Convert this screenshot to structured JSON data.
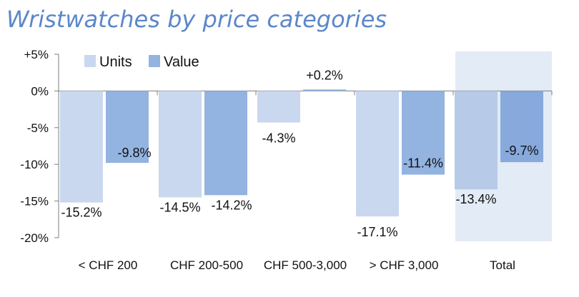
{
  "chart_data": {
    "type": "bar",
    "title": "Wristwatches by price categories",
    "categories": [
      "< CHF 200",
      "CHF 200-500",
      "CHF 500-3,000",
      "> CHF 3,000",
      "Total"
    ],
    "series": [
      {
        "name": "Units",
        "values": [
          -15.2,
          -14.5,
          -4.3,
          -17.1,
          -13.4
        ],
        "labels": [
          "-15.2%",
          "-14.5%",
          "-4.3%",
          "-17.1%",
          "-13.4%"
        ]
      },
      {
        "name": "Value",
        "values": [
          -9.8,
          -14.2,
          0.2,
          -11.4,
          -9.7
        ],
        "labels": [
          "-9.8%",
          "-14.2%",
          "+0.2%",
          "-11.4%",
          "-9.7%"
        ]
      }
    ],
    "yticks": [
      5,
      0,
      -5,
      -10,
      -15,
      -20
    ],
    "ytick_labels": [
      "+5%",
      "0%",
      "-5%",
      "-10%",
      "-15%",
      "-20%"
    ],
    "ylim": [
      -20,
      5
    ],
    "xlabel": "",
    "ylabel": "",
    "legend_position": "top-left",
    "highlighted_category": "Total",
    "grid": false
  },
  "colors": {
    "title": "#5b87c9",
    "units": "#c9d8ef",
    "value": "#93b3e0",
    "units_highlight": "#b7cbe8",
    "value_highlight": "#87a9dc",
    "highlight_bg": "#e2ebf6",
    "axis": "#7f7f7f"
  }
}
